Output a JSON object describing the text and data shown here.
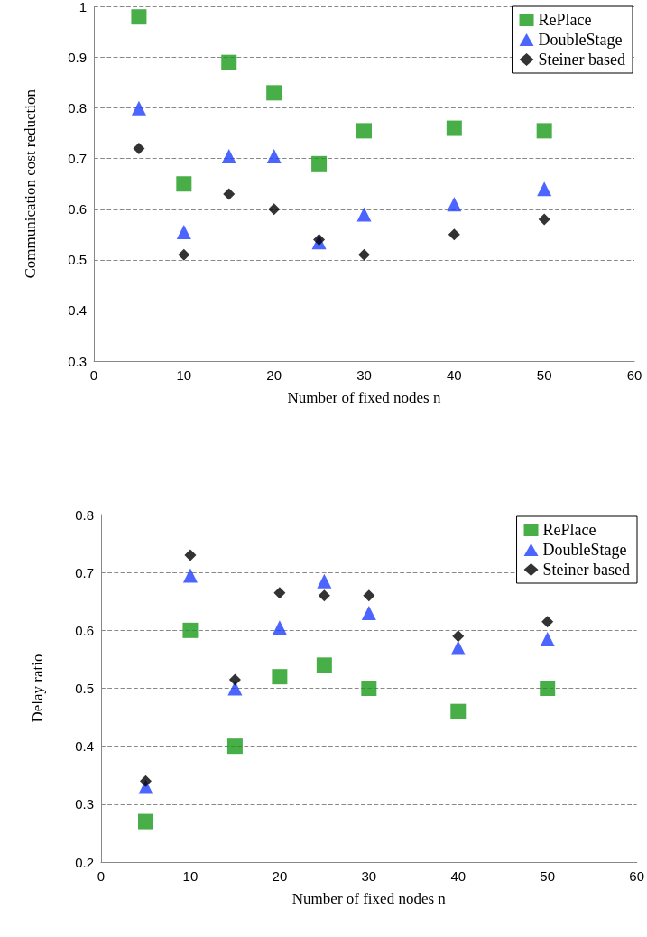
{
  "chart_data": [
    {
      "type": "scatter",
      "xlabel": "Number of fixed nodes n",
      "ylabel": "Communication cost reduction",
      "x": [
        5,
        10,
        15,
        20,
        25,
        30,
        40,
        50
      ],
      "xlim": [
        0,
        60
      ],
      "xticks": [
        0,
        10,
        20,
        30,
        40,
        50,
        60
      ],
      "ylim": [
        0.3,
        1
      ],
      "yticks": [
        {
          "value": 0.3,
          "label": "0.3"
        },
        {
          "value": 0.4,
          "label": "0.4"
        },
        {
          "value": 0.5,
          "label": "0.5"
        },
        {
          "value": 0.6,
          "label": "0.6"
        },
        {
          "value": 0.7,
          "label": "0.7"
        },
        {
          "value": 0.8,
          "label": "0.8"
        },
        {
          "value": 0.9,
          "label": "0.9"
        },
        1
      ],
      "grid": "y",
      "legend": "top right",
      "series": [
        {
          "name": "RePlace",
          "color": "#1a9a1a",
          "marker": "square",
          "values": [
            0.98,
            0.65,
            0.89,
            0.83,
            0.69,
            0.755,
            0.76,
            0.755
          ]
        },
        {
          "name": "DoubleStage",
          "color": "#1f3fff",
          "marker": "triangle",
          "values": [
            0.8,
            0.555,
            0.705,
            0.705,
            0.535,
            0.59,
            0.61,
            0.64
          ]
        },
        {
          "name": "Steiner based",
          "color": "#000000",
          "marker": "diamond",
          "values": [
            0.72,
            0.51,
            0.63,
            0.6,
            0.54,
            0.51,
            0.55,
            0.58
          ]
        }
      ]
    },
    {
      "type": "scatter",
      "xlabel": "Number of fixed nodes n",
      "ylabel": "Delay ratio",
      "x": [
        5,
        10,
        15,
        20,
        25,
        30,
        40,
        50
      ],
      "xlim": [
        0,
        60
      ],
      "xticks": [
        0,
        10,
        20,
        30,
        40,
        50,
        60
      ],
      "ylim": [
        0.2,
        0.8
      ],
      "yticks": [
        {
          "value": 0.2,
          "label": "0.2"
        },
        {
          "value": 0.3,
          "label": "0.3"
        },
        {
          "value": 0.4,
          "label": "0.4"
        },
        {
          "value": 0.5,
          "label": "0.5"
        },
        {
          "value": 0.6,
          "label": "0.6"
        },
        {
          "value": 0.7,
          "label": "0.7"
        },
        {
          "value": 0.8,
          "label": "0.8"
        }
      ],
      "grid": "y",
      "legend": "top right",
      "series": [
        {
          "name": "RePlace",
          "color": "#1a9a1a",
          "marker": "square",
          "values": [
            0.27,
            0.6,
            0.4,
            0.52,
            0.54,
            0.5,
            0.46,
            0.5
          ]
        },
        {
          "name": "DoubleStage",
          "color": "#1f3fff",
          "marker": "triangle",
          "values": [
            0.33,
            0.695,
            0.5,
            0.605,
            0.685,
            0.63,
            0.57,
            0.585
          ]
        },
        {
          "name": "Steiner based",
          "color": "#000000",
          "marker": "diamond",
          "values": [
            0.34,
            0.73,
            0.515,
            0.665,
            0.66,
            0.66,
            0.59,
            0.615
          ]
        }
      ]
    }
  ]
}
